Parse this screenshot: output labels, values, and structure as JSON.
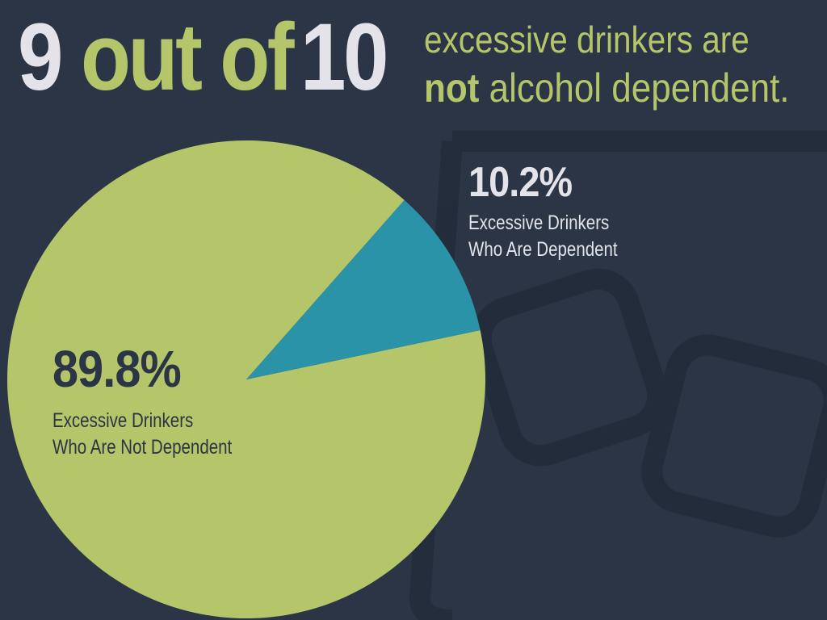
{
  "chart_data": {
    "type": "pie",
    "title": [
      "9",
      "out of",
      "10",
      "excessive drinkers are",
      "not",
      "alcohol dependent."
    ],
    "categories": [
      "Excessive Drinkers Who Are Not Dependent",
      "Excessive Drinkers Who Are Dependent"
    ],
    "values": [
      89.8,
      10.2
    ],
    "value_labels": [
      "89.8%",
      "10.2%"
    ],
    "colors": [
      "#b5c56a",
      "#2a93a8"
    ]
  }
}
